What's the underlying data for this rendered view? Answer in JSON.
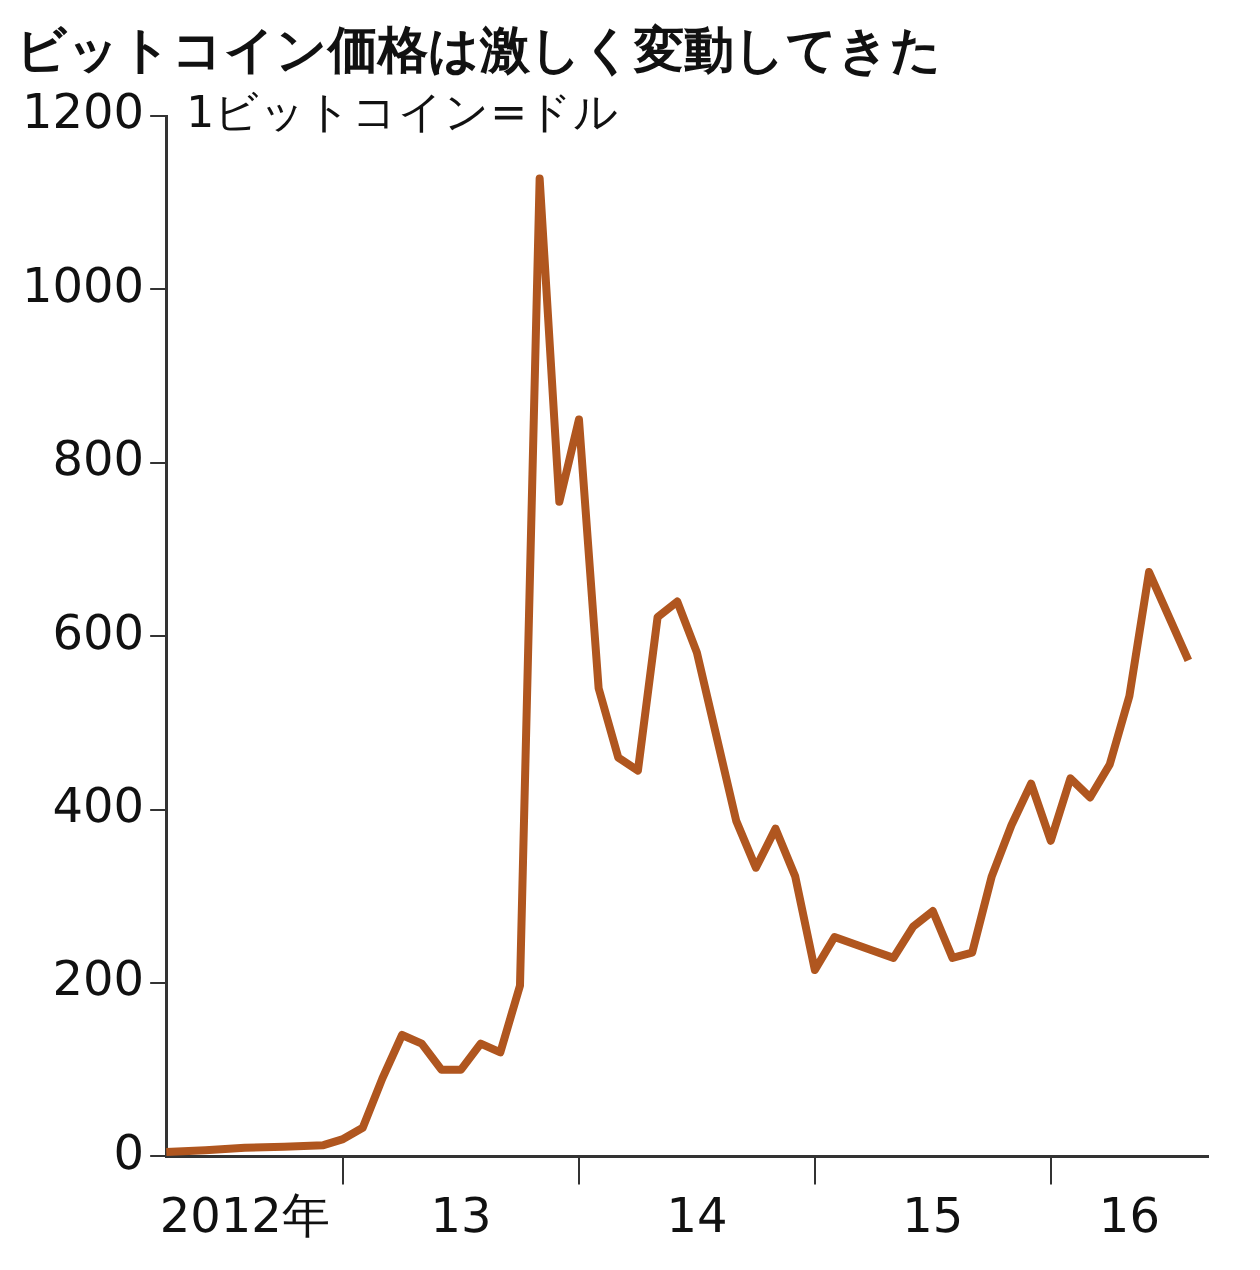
{
  "chart_data": {
    "type": "line",
    "title": "ビットコイン価格は激しく変動してきた",
    "ylabel": "1ビットコイン=ドル",
    "x": [
      "2012-04",
      "2012-06",
      "2012-08",
      "2012-10",
      "2012-12",
      "2013-01",
      "2013-02",
      "2013-03",
      "2013-04",
      "2013-05",
      "2013-06",
      "2013-07",
      "2013-08",
      "2013-09",
      "2013-10",
      "2013-11",
      "2013-12",
      "2014-01",
      "2014-02",
      "2014-03",
      "2014-04",
      "2014-05",
      "2014-06",
      "2014-07",
      "2014-08",
      "2014-09",
      "2014-10",
      "2014-11",
      "2014-12",
      "2015-01",
      "2015-02",
      "2015-03",
      "2015-04",
      "2015-05",
      "2015-06",
      "2015-07",
      "2015-08",
      "2015-09",
      "2015-10",
      "2015-11",
      "2015-12",
      "2016-01",
      "2016-02",
      "2016-03",
      "2016-04",
      "2016-05",
      "2016-06",
      "2016-08"
    ],
    "series": [
      {
        "color": "#b0561f",
        "values": [
          5,
          7,
          10,
          11,
          13,
          20,
          33,
          90,
          140,
          130,
          100,
          100,
          130,
          120,
          197,
          1128,
          755,
          850,
          540,
          460,
          445,
          622,
          640,
          581,
          484,
          387,
          333,
          378,
          323,
          215,
          253,
          245,
          237,
          229,
          265,
          283,
          229,
          235,
          323,
          382,
          430,
          364,
          436,
          414,
          452,
          531,
          674,
          572
        ]
      }
    ],
    "xlim": [
      "2012-04",
      "2016-09"
    ],
    "xticks": [
      {
        "value": "2012-08",
        "label": "2012年"
      },
      {
        "value": "2013-01",
        "label": null
      },
      {
        "value": "2013-07",
        "label": "13"
      },
      {
        "value": "2014-01",
        "label": null
      },
      {
        "value": "2014-07",
        "label": "14"
      },
      {
        "value": "2015-01",
        "label": null
      },
      {
        "value": "2015-07",
        "label": "15"
      },
      {
        "value": "2016-01",
        "label": null
      },
      {
        "value": "2016-05",
        "label": "16"
      }
    ],
    "ylim": [
      0,
      1200
    ],
    "yticks": [
      0,
      200,
      400,
      600,
      800,
      1000,
      1200
    ]
  }
}
